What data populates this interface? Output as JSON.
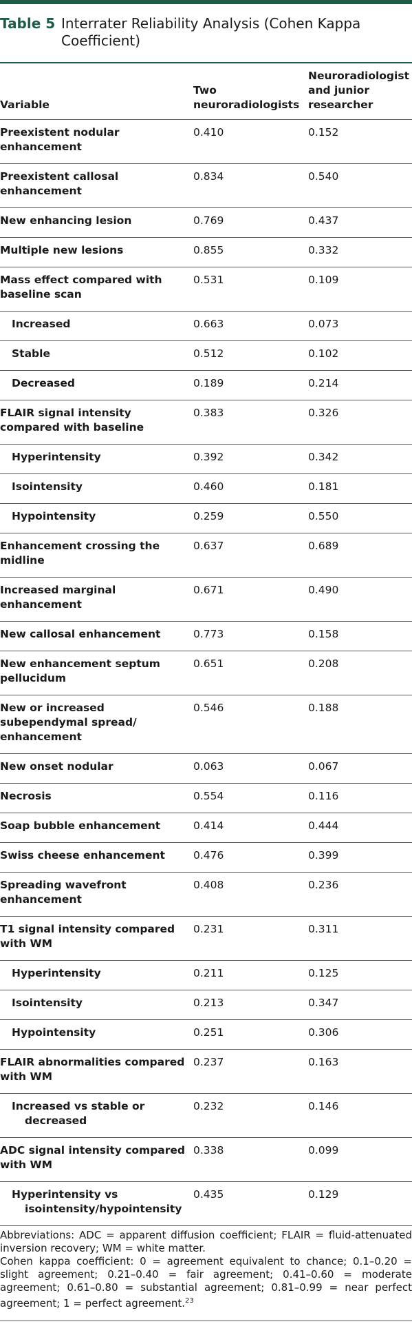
{
  "table": {
    "number": "Table 5",
    "title": "Interrater Reliability Analysis (Cohen Kappa Coefficient)",
    "headers": {
      "variable": "Variable",
      "col1_line1": "Two",
      "col1_line2": "neuroradiologists",
      "col2_line1": "Neuroradiologist",
      "col2_line2": "and junior",
      "col2_line3": "researcher"
    },
    "rows": [
      {
        "label": "Preexistent nodular enhancement",
        "v1": "0.410",
        "v2": "0.152"
      },
      {
        "label": "Preexistent callosal enhancement",
        "v1": "0.834",
        "v2": "0.540"
      },
      {
        "label": "New enhancing lesion",
        "v1": "0.769",
        "v2": "0.437"
      },
      {
        "label": "Multiple new lesions",
        "v1": "0.855",
        "v2": "0.332"
      },
      {
        "label": "Mass effect compared with baseline scan",
        "v1": "0.531",
        "v2": "0.109"
      },
      {
        "label": "Increased",
        "v1": "0.663",
        "v2": "0.073"
      },
      {
        "label": "Stable",
        "v1": "0.512",
        "v2": "0.102"
      },
      {
        "label": "Decreased",
        "v1": "0.189",
        "v2": "0.214"
      },
      {
        "label": "FLAIR signal intensity compared with baseline",
        "v1": "0.383",
        "v2": "0.326"
      },
      {
        "label": "Hyperintensity",
        "v1": "0.392",
        "v2": "0.342"
      },
      {
        "label": "Isointensity",
        "v1": "0.460",
        "v2": "0.181"
      },
      {
        "label": "Hypointensity",
        "v1": "0.259",
        "v2": "0.550"
      },
      {
        "label": "Enhancement crossing the midline",
        "v1": "0.637",
        "v2": "0.689"
      },
      {
        "label": "Increased marginal enhancement",
        "v1": "0.671",
        "v2": "0.490"
      },
      {
        "label": "New callosal enhancement",
        "v1": "0.773",
        "v2": "0.158"
      },
      {
        "label": "New enhancement septum pellucidum",
        "v1": "0.651",
        "v2": "0.208"
      },
      {
        "label": "New or increased subependymal spread/ enhancement",
        "v1": "0.546",
        "v2": "0.188"
      },
      {
        "label": "New onset nodular",
        "v1": "0.063",
        "v2": "0.067"
      },
      {
        "label": "Necrosis",
        "v1": "0.554",
        "v2": "0.116"
      },
      {
        "label": "Soap bubble enhancement",
        "v1": "0.414",
        "v2": "0.444"
      },
      {
        "label": "Swiss cheese enhancement",
        "v1": "0.476",
        "v2": "0.399"
      },
      {
        "label": "Spreading wavefront enhancement",
        "v1": "0.408",
        "v2": "0.236"
      },
      {
        "label": "T1 signal intensity compared with WM",
        "v1": "0.231",
        "v2": "0.311"
      },
      {
        "label": "Hyperintensity",
        "v1": "0.211",
        "v2": "0.125"
      },
      {
        "label": "Isointensity",
        "v1": "0.213",
        "v2": "0.347"
      },
      {
        "label": "Hypointensity",
        "v1": "0.251",
        "v2": "0.306"
      },
      {
        "label": "FLAIR abnormalities compared with WM",
        "v1": "0.237",
        "v2": "0.163"
      },
      {
        "label": "Increased vs stable or",
        "cont": "decreased",
        "v1": "0.232",
        "v2": "0.146"
      },
      {
        "label": "ADC signal intensity compared with WM",
        "v1": "0.338",
        "v2": "0.099"
      },
      {
        "label": "Hyperintensity vs",
        "cont": "isointensity/hypointensity",
        "v1": "0.435",
        "v2": "0.129"
      }
    ],
    "footnote_abbrev": "Abbreviations: ADC = apparent diffusion coefficient; FLAIR = fluid-attenuated inversion recovery; WM = white matter.",
    "footnote_kappa": "Cohen kappa coefficient: 0 = agreement equivalent to chance; 0.1–0.20 = slight agreement; 0.21–0.40 = fair agreement; 0.41–0.60 = moderate agreement; 0.61–0.80 = substantial agreement; 0.81–0.99 = near perfect agreement; 1 = perfect agreement.",
    "footnote_ref": "23"
  }
}
